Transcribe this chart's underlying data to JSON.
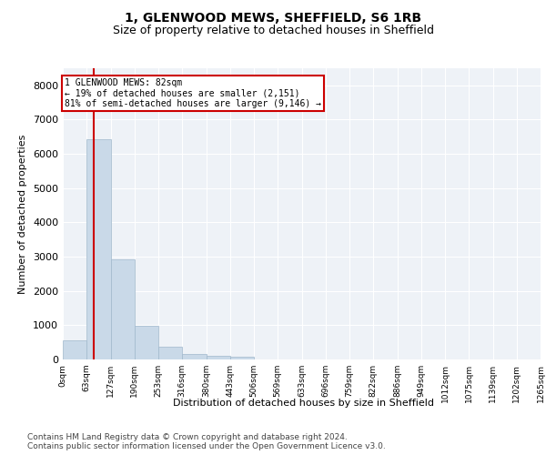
{
  "title": "1, GLENWOOD MEWS, SHEFFIELD, S6 1RB",
  "subtitle": "Size of property relative to detached houses in Sheffield",
  "xlabel": "Distribution of detached houses by size in Sheffield",
  "ylabel": "Number of detached properties",
  "bar_edges": [
    0,
    63,
    127,
    190,
    253,
    316,
    380,
    443,
    506,
    569,
    633,
    696,
    759,
    822,
    886,
    949,
    1012,
    1075,
    1139,
    1202,
    1265
  ],
  "bar_heights": [
    570,
    6420,
    2920,
    990,
    360,
    170,
    100,
    90,
    0,
    0,
    0,
    0,
    0,
    0,
    0,
    0,
    0,
    0,
    0,
    0
  ],
  "bar_color": "#c9d9e8",
  "bar_edge_color": "#a0b8cc",
  "property_line_x": 82,
  "property_line_color": "#cc0000",
  "annotation_text": "1 GLENWOOD MEWS: 82sqm\n← 19% of detached houses are smaller (2,151)\n81% of semi-detached houses are larger (9,146) →",
  "annotation_box_color": "#cc0000",
  "ylim": [
    0,
    8500
  ],
  "yticks": [
    0,
    1000,
    2000,
    3000,
    4000,
    5000,
    6000,
    7000,
    8000
  ],
  "tick_labels": [
    "0sqm",
    "63sqm",
    "127sqm",
    "190sqm",
    "253sqm",
    "316sqm",
    "380sqm",
    "443sqm",
    "506sqm",
    "569sqm",
    "633sqm",
    "696sqm",
    "759sqm",
    "822sqm",
    "886sqm",
    "949sqm",
    "1012sqm",
    "1075sqm",
    "1139sqm",
    "1202sqm",
    "1265sqm"
  ],
  "footer": "Contains HM Land Registry data © Crown copyright and database right 2024.\nContains public sector information licensed under the Open Government Licence v3.0.",
  "bg_color": "#eef2f7",
  "grid_color": "#ffffff",
  "title_fontsize": 10,
  "subtitle_fontsize": 9,
  "axis_label_fontsize": 8,
  "tick_fontsize": 6.5,
  "footer_fontsize": 6.5,
  "xlim": [
    0,
    1265
  ]
}
